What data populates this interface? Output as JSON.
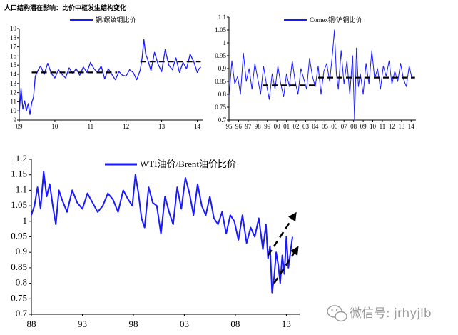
{
  "watermark": {
    "text": "微信号: jrhyjlb",
    "icon": "wechat-icon"
  },
  "colors": {
    "series": "#1a1aff",
    "reference": "#000000",
    "axis": "#000000",
    "watermark": "#9a9a9a"
  },
  "chart_data": [
    {
      "id": "copper-rebar",
      "type": "line",
      "title": "人口结构潜在影响：比价中枢发生结构变化",
      "legend": [
        "铜/螺纹钢比价"
      ],
      "legend_position": "top-center",
      "x_tick_labels": [
        "09",
        "10",
        "11",
        "12",
        "13",
        "14"
      ],
      "xlim": [
        2009.0,
        2014.15
      ],
      "ylim": [
        9,
        19
      ],
      "y_ticks": [
        9,
        10,
        11,
        12,
        13,
        14,
        15,
        16,
        17,
        18,
        19
      ],
      "series": [
        {
          "name": "铜/螺纹钢比价",
          "x": [
            2009.0,
            2009.05,
            2009.1,
            2009.15,
            2009.2,
            2009.25,
            2009.3,
            2009.35,
            2009.4,
            2009.45,
            2009.5,
            2009.55,
            2009.6,
            2009.7,
            2009.8,
            2009.9,
            2010.0,
            2010.1,
            2010.2,
            2010.3,
            2010.4,
            2010.5,
            2010.6,
            2010.7,
            2010.8,
            2010.9,
            2011.0,
            2011.1,
            2011.2,
            2011.3,
            2011.4,
            2011.5,
            2011.6,
            2011.7,
            2011.8,
            2011.9,
            2012.0,
            2012.1,
            2012.2,
            2012.3,
            2012.4,
            2012.45,
            2012.5,
            2012.55,
            2012.6,
            2012.7,
            2012.8,
            2012.9,
            2013.0,
            2013.1,
            2013.2,
            2013.3,
            2013.4,
            2013.5,
            2013.6,
            2013.7,
            2013.8,
            2013.9,
            2014.0,
            2014.05,
            2014.1
          ],
          "values": [
            9.8,
            12.5,
            10.2,
            11.1,
            10.0,
            10.8,
            9.6,
            10.9,
            11.5,
            13.8,
            14.2,
            14.6,
            14.9,
            14.0,
            15.2,
            14.1,
            13.6,
            14.5,
            14.0,
            13.6,
            14.7,
            14.1,
            14.6,
            13.9,
            14.8,
            14.2,
            15.3,
            14.6,
            14.2,
            14.9,
            13.5,
            14.6,
            14.0,
            13.4,
            14.3,
            13.9,
            13.8,
            14.5,
            14.2,
            13.4,
            14.5,
            15.8,
            17.8,
            16.2,
            15.7,
            14.4,
            16.4,
            15.1,
            14.3,
            16.7,
            15.0,
            14.5,
            15.8,
            14.2,
            15.3,
            14.6,
            16.2,
            15.4,
            14.2,
            14.6,
            14.8
          ]
        },
        {
          "name": "",
          "x": [
            2009.35,
            2011.75
          ],
          "values": [
            14.2,
            14.2
          ]
        },
        {
          "name": "",
          "x": [
            2012.4,
            2014.1
          ],
          "values": [
            15.4,
            15.4
          ]
        }
      ]
    },
    {
      "id": "comex-shfe",
      "type": "line",
      "legend": [
        "Comex铜/沪铜比价"
      ],
      "legend_position": "top-center",
      "x_tick_labels": [
        "95",
        "96",
        "97",
        "98",
        "99",
        "00",
        "01",
        "02",
        "03",
        "04",
        "05",
        "06",
        "07",
        "08",
        "09",
        "10",
        "11",
        "12",
        "13",
        "14"
      ],
      "xlim": [
        1995.0,
        2014.5
      ],
      "ylim": [
        0.7,
        1.1
      ],
      "y_ticks": [
        0.7,
        0.75,
        0.8,
        0.85,
        0.9,
        0.95,
        1,
        1.05,
        1.1
      ],
      "series": [
        {
          "name": "Comex铜/沪铜比价",
          "x": [
            1995.0,
            1995.3,
            1995.6,
            1995.9,
            1996.2,
            1996.5,
            1996.8,
            1997.1,
            1997.4,
            1997.7,
            1998.0,
            1998.3,
            1998.6,
            1998.9,
            1999.2,
            1999.5,
            1999.8,
            2000.1,
            2000.4,
            2000.7,
            2001.0,
            2001.3,
            2001.6,
            2001.9,
            2002.2,
            2002.5,
            2002.8,
            2003.1,
            2003.4,
            2003.7,
            2004.0,
            2004.3,
            2004.6,
            2004.9,
            2005.2,
            2005.5,
            2005.8,
            2006.0,
            2006.2,
            2006.4,
            2006.7,
            2007.0,
            2007.3,
            2007.6,
            2007.9,
            2008.1,
            2008.3,
            2008.5,
            2008.7,
            2009.0,
            2009.3,
            2009.6,
            2009.9,
            2010.2,
            2010.5,
            2010.8,
            2011.1,
            2011.4,
            2011.7,
            2012.0,
            2012.3,
            2012.6,
            2012.9,
            2013.2,
            2013.5,
            2013.8,
            2014.1
          ],
          "values": [
            0.79,
            0.93,
            0.84,
            0.87,
            0.8,
            0.96,
            0.85,
            0.9,
            0.82,
            0.92,
            0.86,
            0.8,
            0.91,
            0.84,
            0.78,
            0.88,
            0.82,
            0.91,
            0.84,
            0.79,
            0.88,
            0.83,
            0.93,
            0.85,
            0.8,
            0.9,
            0.86,
            0.82,
            0.94,
            0.87,
            0.83,
            0.91,
            0.8,
            0.89,
            0.92,
            0.85,
            0.96,
            1.05,
            0.88,
            0.82,
            0.97,
            0.84,
            0.93,
            0.8,
            0.95,
            0.7,
            0.98,
            0.83,
            0.88,
            0.8,
            0.92,
            0.84,
            0.97,
            0.86,
            0.9,
            0.82,
            0.91,
            0.87,
            0.93,
            0.84,
            0.89,
            0.85,
            0.92,
            0.86,
            0.83,
            0.91,
            0.86
          ]
        },
        {
          "name": "",
          "x": [
            1998.5,
            2004.3
          ],
          "values": [
            0.835,
            0.835
          ]
        },
        {
          "name": "",
          "x": [
            2004.3,
            2014.4
          ],
          "values": [
            0.865,
            0.865
          ]
        }
      ]
    },
    {
      "id": "wti-brent",
      "type": "line",
      "legend": [
        "WTI油价/Brent油价比价"
      ],
      "legend_position": "top-center",
      "x_tick_labels": [
        "88",
        "93",
        "98",
        "03",
        "08",
        "13"
      ],
      "xlim": [
        1988.0,
        2014.3
      ],
      "ylim": [
        0.7,
        1.2
      ],
      "y_ticks": [
        0.7,
        0.75,
        0.8,
        0.85,
        0.9,
        0.95,
        1,
        1.05,
        1.1,
        1.15,
        1.2
      ],
      "series": [
        {
          "name": "WTI油价/Brent油价比价",
          "x": [
            1988.0,
            1988.3,
            1988.6,
            1988.9,
            1989.2,
            1989.5,
            1989.8,
            1990.1,
            1990.4,
            1990.7,
            1991.0,
            1991.5,
            1992.0,
            1992.5,
            1993.0,
            1993.5,
            1994.0,
            1994.5,
            1995.0,
            1995.5,
            1996.0,
            1996.5,
            1997.0,
            1997.5,
            1997.9,
            1998.2,
            1998.5,
            1998.8,
            1999.1,
            1999.5,
            1999.9,
            2000.3,
            2000.7,
            2001.1,
            2001.5,
            2001.9,
            2002.3,
            2002.7,
            2003.1,
            2003.5,
            2003.9,
            2004.3,
            2004.7,
            2005.1,
            2005.5,
            2005.9,
            2006.3,
            2006.7,
            2007.1,
            2007.5,
            2007.9,
            2008.3,
            2008.7,
            2009.1,
            2009.5,
            2009.9,
            2010.3,
            2010.7,
            2011.0,
            2011.2,
            2011.4,
            2011.6,
            2011.8,
            2012.0,
            2012.2,
            2012.4,
            2012.6,
            2012.8,
            2013.0,
            2013.2,
            2013.4,
            2013.6
          ],
          "values": [
            1.02,
            1.05,
            1.11,
            1.04,
            1.16,
            1.08,
            1.12,
            1.05,
            0.99,
            1.1,
            1.07,
            1.03,
            1.1,
            1.06,
            1.04,
            1.09,
            1.06,
            1.03,
            1.05,
            1.09,
            1.07,
            1.03,
            1.1,
            1.07,
            1.05,
            1.15,
            1.09,
            1.01,
            0.98,
            1.11,
            1.06,
            1.05,
            0.96,
            1.08,
            1.03,
            0.99,
            1.11,
            1.04,
            1.14,
            1.09,
            1.02,
            1.12,
            1.05,
            1.02,
            1.08,
            1.01,
            0.99,
            1.03,
            0.96,
            1.02,
            1.0,
            0.94,
            1.02,
            0.93,
            0.98,
            0.95,
            1.01,
            0.91,
            0.99,
            0.88,
            0.92,
            0.77,
            0.82,
            0.9,
            0.86,
            0.8,
            0.89,
            0.83,
            0.95,
            0.85,
            0.9,
            0.95
          ]
        }
      ],
      "arrows": [
        {
          "from": [
            2011.2,
            0.89
          ],
          "to": [
            2014.0,
            1.03
          ]
        },
        {
          "from": [
            2011.8,
            0.8
          ],
          "to": [
            2014.2,
            0.92
          ]
        }
      ]
    }
  ]
}
